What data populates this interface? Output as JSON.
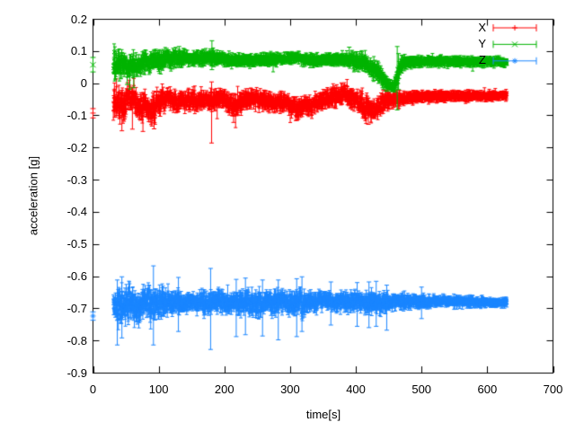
{
  "chart_data": {
    "type": "scatter",
    "plot_style": "errorbars",
    "title": "",
    "xlabel": "time[s]",
    "ylabel": "acceleration [g]",
    "xlim": [
      0,
      700
    ],
    "ylim": [
      -0.9,
      0.2
    ],
    "x_ticks": [
      0,
      100,
      200,
      300,
      400,
      500,
      600,
      700
    ],
    "y_ticks": [
      0.2,
      0.1,
      0,
      -0.1,
      -0.2,
      -0.3,
      -0.4,
      -0.5,
      -0.6,
      -0.7,
      -0.8,
      -0.9
    ],
    "grid": false,
    "legend_position": "top-right-inside",
    "background_color": "#ffffff",
    "axis_color": "#000000",
    "series": [
      {
        "name": "X",
        "color": "#ff0000",
        "marker": "plus",
        "isolated_points": [
          {
            "t": 0,
            "v": -0.093,
            "lo": -0.108,
            "hi": -0.079
          }
        ],
        "band": {
          "t_start": 31,
          "t_end": 630,
          "dt": 0.4,
          "envelope": [
            [
              31,
              -0.05,
              0.058
            ],
            [
              38,
              -0.058,
              0.052
            ],
            [
              46,
              -0.068,
              0.048
            ],
            [
              54,
              -0.048,
              0.042
            ],
            [
              62,
              -0.038,
              0.042
            ],
            [
              70,
              -0.075,
              0.045
            ],
            [
              78,
              -0.068,
              0.042
            ],
            [
              86,
              -0.085,
              0.045
            ],
            [
              95,
              -0.07,
              0.04
            ],
            [
              105,
              -0.052,
              0.035
            ],
            [
              115,
              -0.046,
              0.03
            ],
            [
              125,
              -0.055,
              0.034
            ],
            [
              136,
              -0.05,
              0.03
            ],
            [
              150,
              -0.055,
              0.028
            ],
            [
              165,
              -0.05,
              0.026
            ],
            [
              180,
              -0.05,
              0.03
            ],
            [
              195,
              -0.048,
              0.028
            ],
            [
              208,
              -0.062,
              0.034
            ],
            [
              218,
              -0.075,
              0.034
            ],
            [
              230,
              -0.052,
              0.03
            ],
            [
              245,
              -0.05,
              0.026
            ],
            [
              262,
              -0.053,
              0.026
            ],
            [
              278,
              -0.06,
              0.029
            ],
            [
              292,
              -0.055,
              0.028
            ],
            [
              303,
              -0.076,
              0.032
            ],
            [
              313,
              -0.079,
              0.03
            ],
            [
              321,
              -0.062,
              0.028
            ],
            [
              331,
              -0.077,
              0.03
            ],
            [
              343,
              -0.06,
              0.028
            ],
            [
              356,
              -0.046,
              0.028
            ],
            [
              370,
              -0.039,
              0.03
            ],
            [
              384,
              -0.035,
              0.032
            ],
            [
              398,
              -0.052,
              0.032
            ],
            [
              410,
              -0.068,
              0.04
            ],
            [
              420,
              -0.082,
              0.034
            ],
            [
              429,
              -0.086,
              0.027
            ],
            [
              438,
              -0.062,
              0.033
            ],
            [
              448,
              -0.055,
              0.027
            ],
            [
              460,
              -0.049,
              0.022
            ],
            [
              472,
              -0.046,
              0.018
            ],
            [
              485,
              -0.043,
              0.015
            ],
            [
              510,
              -0.041,
              0.013
            ],
            [
              545,
              -0.04,
              0.012
            ],
            [
              585,
              -0.04,
              0.011
            ],
            [
              630,
              -0.038,
              0.01
            ]
          ],
          "outlier_bars": [
            [
              44,
              -0.148,
              -0.022
            ],
            [
              60,
              -0.143,
              -0.05
            ],
            [
              76,
              -0.15,
              -0.03
            ],
            [
              93,
              -0.142,
              -0.025
            ],
            [
              180.5,
              -0.186,
              0.004
            ],
            [
              214,
              -0.122,
              -0.032
            ],
            [
              310,
              -0.116,
              -0.042
            ],
            [
              419,
              -0.128,
              -0.046
            ]
          ]
        }
      },
      {
        "name": "Y",
        "color": "#00b400",
        "marker": "cross",
        "isolated_points": [
          {
            "t": 0,
            "v": 0.057,
            "lo": 0.035,
            "hi": 0.08
          }
        ],
        "band": {
          "t_start": 31,
          "t_end": 630,
          "dt": 0.4,
          "envelope": [
            [
              31,
              0.055,
              0.048
            ],
            [
              38,
              0.057,
              0.042
            ],
            [
              46,
              0.06,
              0.036
            ],
            [
              54,
              0.05,
              0.038
            ],
            [
              63,
              0.056,
              0.034
            ],
            [
              74,
              0.064,
              0.03
            ],
            [
              88,
              0.068,
              0.028
            ],
            [
              103,
              0.072,
              0.026
            ],
            [
              118,
              0.076,
              0.025
            ],
            [
              131,
              0.08,
              0.024
            ],
            [
              144,
              0.075,
              0.02
            ],
            [
              160,
              0.078,
              0.018
            ],
            [
              176,
              0.08,
              0.019
            ],
            [
              190,
              0.078,
              0.018
            ],
            [
              205,
              0.074,
              0.017
            ],
            [
              225,
              0.07,
              0.015
            ],
            [
              250,
              0.071,
              0.015
            ],
            [
              275,
              0.073,
              0.015
            ],
            [
              295,
              0.077,
              0.014
            ],
            [
              308,
              0.08,
              0.013
            ],
            [
              322,
              0.074,
              0.014
            ],
            [
              340,
              0.071,
              0.015
            ],
            [
              360,
              0.072,
              0.015
            ],
            [
              380,
              0.074,
              0.016
            ],
            [
              394,
              0.07,
              0.019
            ],
            [
              408,
              0.066,
              0.024
            ],
            [
              421,
              0.057,
              0.028
            ],
            [
              433,
              0.032,
              0.028
            ],
            [
              444,
              0.008,
              0.022
            ],
            [
              452,
              -0.008,
              0.016
            ],
            [
              458,
              -0.012,
              0.018
            ],
            [
              462,
              0.01,
              0.032
            ],
            [
              467,
              0.048,
              0.026
            ],
            [
              473,
              0.064,
              0.016
            ],
            [
              490,
              0.067,
              0.013
            ],
            [
              520,
              0.068,
              0.012
            ],
            [
              560,
              0.067,
              0.011
            ],
            [
              600,
              0.067,
              0.01
            ],
            [
              630,
              0.066,
              0.01
            ]
          ],
          "outlier_bars": [
            [
              52,
              -0.004,
              0.062
            ],
            [
              56,
              -0.018,
              0.052
            ],
            [
              62,
              -0.014,
              0.056
            ],
            [
              131,
              0.052,
              0.114
            ],
            [
              181,
              0.042,
              0.132
            ],
            [
              390,
              0.052,
              0.112
            ],
            [
              463,
              -0.083,
              0.114
            ],
            [
              465,
              -0.02,
              0.092
            ]
          ]
        }
      },
      {
        "name": "Z",
        "color": "#1a86ff",
        "marker": "asterisk",
        "isolated_points": [
          {
            "t": 0,
            "v": -0.724,
            "lo": -0.737,
            "hi": -0.711
          }
        ],
        "band": {
          "t_start": 31,
          "t_end": 630,
          "dt": 0.4,
          "envelope": [
            [
              31,
              -0.685,
              0.025
            ],
            [
              36,
              -0.688,
              0.052
            ],
            [
              44,
              -0.686,
              0.06
            ],
            [
              55,
              -0.69,
              0.06
            ],
            [
              65,
              -0.686,
              0.057
            ],
            [
              75,
              -0.688,
              0.054
            ],
            [
              85,
              -0.685,
              0.05
            ],
            [
              95,
              -0.684,
              0.048
            ],
            [
              105,
              -0.684,
              0.045
            ],
            [
              115,
              -0.683,
              0.041
            ],
            [
              125,
              -0.682,
              0.034
            ],
            [
              136,
              -0.68,
              0.028
            ],
            [
              150,
              -0.679,
              0.025
            ],
            [
              162,
              -0.68,
              0.029
            ],
            [
              172,
              -0.682,
              0.037
            ],
            [
              182,
              -0.68,
              0.034
            ],
            [
              194,
              -0.681,
              0.031
            ],
            [
              205,
              -0.68,
              0.028
            ],
            [
              216,
              -0.682,
              0.032
            ],
            [
              228,
              -0.683,
              0.041
            ],
            [
              240,
              -0.682,
              0.044
            ],
            [
              252,
              -0.681,
              0.039
            ],
            [
              265,
              -0.68,
              0.032
            ],
            [
              278,
              -0.681,
              0.035
            ],
            [
              292,
              -0.68,
              0.03
            ],
            [
              304,
              -0.682,
              0.037
            ],
            [
              316,
              -0.683,
              0.039
            ],
            [
              330,
              -0.68,
              0.03
            ],
            [
              345,
              -0.679,
              0.028
            ],
            [
              360,
              -0.678,
              0.026
            ],
            [
              375,
              -0.68,
              0.028
            ],
            [
              390,
              -0.679,
              0.026
            ],
            [
              405,
              -0.68,
              0.028
            ],
            [
              418,
              -0.681,
              0.031
            ],
            [
              431,
              -0.682,
              0.032
            ],
            [
              445,
              -0.68,
              0.026
            ],
            [
              460,
              -0.679,
              0.022
            ],
            [
              475,
              -0.679,
              0.02
            ],
            [
              492,
              -0.679,
              0.018
            ],
            [
              510,
              -0.679,
              0.016
            ],
            [
              530,
              -0.678,
              0.014
            ],
            [
              555,
              -0.679,
              0.013
            ],
            [
              580,
              -0.68,
              0.012
            ],
            [
              605,
              -0.681,
              0.011
            ],
            [
              630,
              -0.682,
              0.01
            ]
          ],
          "outlier_bars": [
            [
              37,
              -0.814,
              -0.612
            ],
            [
              44,
              -0.792,
              -0.602
            ],
            [
              92,
              -0.814,
              -0.568
            ],
            [
              130,
              -0.772,
              -0.604
            ],
            [
              179,
              -0.828,
              -0.576
            ],
            [
              218,
              -0.788,
              -0.61
            ],
            [
              232,
              -0.782,
              -0.606
            ],
            [
              258,
              -0.786,
              -0.612
            ],
            [
              282,
              -0.798,
              -0.612
            ],
            [
              310,
              -0.788,
              -0.608
            ],
            [
              318,
              -0.772,
              -0.602
            ],
            [
              362,
              -0.752,
              -0.618
            ],
            [
              402,
              -0.756,
              -0.62
            ],
            [
              420,
              -0.76,
              -0.618
            ],
            [
              431,
              -0.756,
              -0.616
            ],
            [
              447,
              -0.768,
              -0.628
            ],
            [
              500,
              -0.732,
              -0.634
            ]
          ]
        }
      }
    ]
  }
}
